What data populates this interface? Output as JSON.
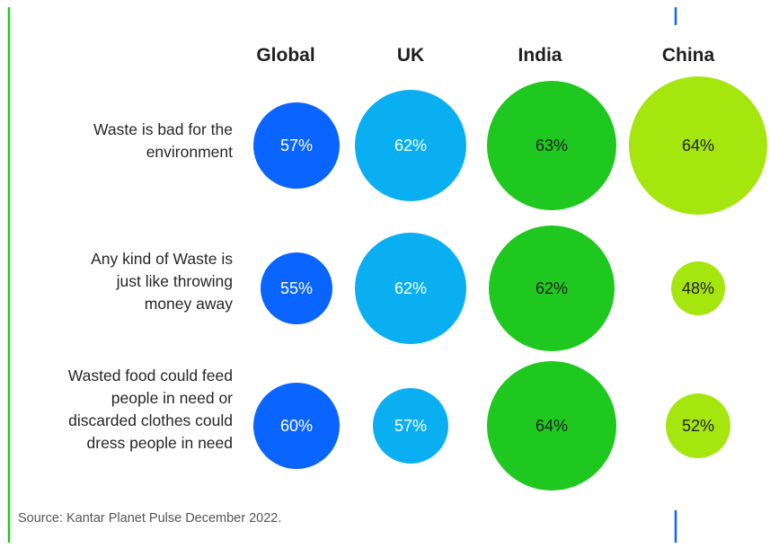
{
  "colors": {
    "Global": "#0a64ff",
    "UK": "#0aaff2",
    "India": "#1ec81e",
    "China": "#a5e60f",
    "text_light": "#ffffff",
    "text_dark": "#222222",
    "frame_green": "#1ec81e",
    "frame_blue": "#0a64ff"
  },
  "chart_data": {
    "type": "bubble-matrix",
    "columns": [
      "Global",
      "UK",
      "India",
      "China"
    ],
    "rows": [
      "Waste is bad for the environment",
      "Any kind of Waste is just like throwing money away",
      "Wasted food could feed people in need or discarded clothes could dress people in need"
    ],
    "row_label_lines": [
      [
        "Waste is bad for the",
        "environment"
      ],
      [
        "Any kind of Waste is",
        "just like throwing",
        "money away"
      ],
      [
        "Wasted food could feed",
        "people in need or",
        "discarded clothes could",
        "dress people in need"
      ]
    ],
    "values": [
      [
        57,
        62,
        63,
        64
      ],
      [
        55,
        62,
        62,
        48
      ],
      [
        60,
        57,
        64,
        52
      ]
    ],
    "value_labels": [
      [
        "57%",
        "62%",
        "63%",
        "64%"
      ],
      [
        "55%",
        "62%",
        "62%",
        "48%"
      ],
      [
        "60%",
        "57%",
        "64%",
        "52%"
      ]
    ],
    "unit": "%"
  },
  "source": "Source: Kantar Planet Pulse December 2022."
}
